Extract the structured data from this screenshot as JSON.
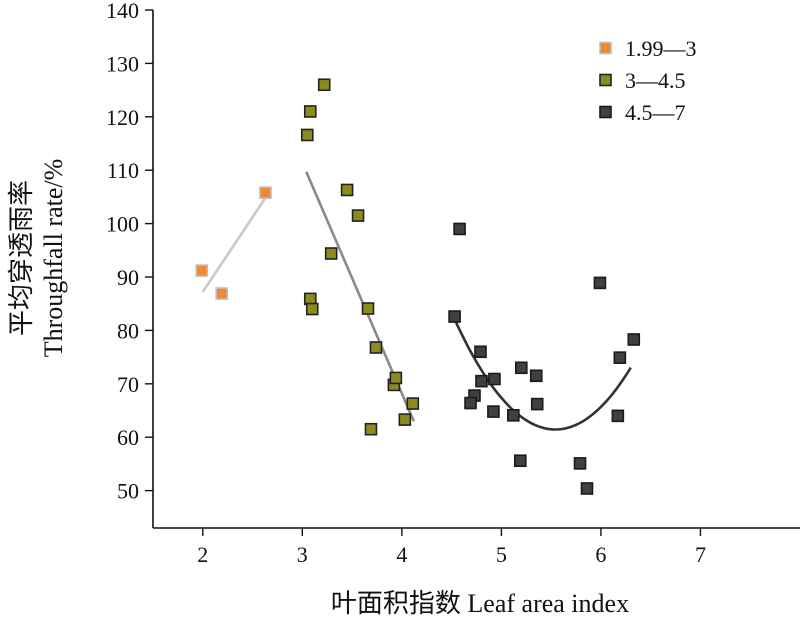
{
  "chart_data": {
    "type": "scatter",
    "xlabel": "叶面积指数 Leaf area index",
    "ylabel_cn": "平均穿透雨率",
    "ylabel_en": "Throughfall rate/%",
    "xlim": [
      1.5,
      8
    ],
    "ylim": [
      43,
      140
    ],
    "xticks": [
      2,
      3,
      4,
      5,
      6,
      7
    ],
    "yticks": [
      50,
      60,
      70,
      80,
      90,
      100,
      110,
      120,
      130,
      140
    ],
    "grid": false,
    "legend_position": "top-right",
    "series": [
      {
        "name": "1.99—3",
        "color": "#f28a2a",
        "edge": "#bdbdbd",
        "points": [
          [
            1.99,
            91.2
          ],
          [
            2.19,
            86.9
          ],
          [
            2.63,
            105.8
          ]
        ],
        "fit": {
          "kind": "line",
          "x": [
            2.0,
            2.65
          ],
          "y": [
            87.2,
            105.4
          ],
          "color": "#c8c8c8"
        }
      },
      {
        "name": "3—4.5",
        "color": "#8c8c1e",
        "edge": "#222222",
        "points": [
          [
            3.05,
            116.6
          ],
          [
            3.08,
            121.0
          ],
          [
            3.22,
            126.0
          ],
          [
            3.08,
            85.9
          ],
          [
            3.1,
            84.0
          ],
          [
            3.29,
            94.4
          ],
          [
            3.45,
            106.3
          ],
          [
            3.56,
            101.5
          ],
          [
            3.66,
            84.1
          ],
          [
            3.74,
            76.8
          ],
          [
            3.69,
            61.5
          ],
          [
            3.92,
            69.8
          ],
          [
            3.94,
            71.1
          ],
          [
            4.03,
            63.3
          ],
          [
            4.11,
            66.3
          ]
        ],
        "fit": {
          "kind": "line",
          "x": [
            3.04,
            4.12
          ],
          "y": [
            109.7,
            63.0
          ],
          "color": "#8a8a8a"
        }
      },
      {
        "name": "4.5—7",
        "color": "#404040",
        "edge": "#1a1a1a",
        "points": [
          [
            4.58,
            99.0
          ],
          [
            4.53,
            82.6
          ],
          [
            4.79,
            76.0
          ],
          [
            4.8,
            70.5
          ],
          [
            4.73,
            67.8
          ],
          [
            4.69,
            66.4
          ],
          [
            4.93,
            70.9
          ],
          [
            4.92,
            64.8
          ],
          [
            5.12,
            64.1
          ],
          [
            5.2,
            73.0
          ],
          [
            5.19,
            55.6
          ],
          [
            5.35,
            71.5
          ],
          [
            5.36,
            66.2
          ],
          [
            5.79,
            55.1
          ],
          [
            5.86,
            50.4
          ],
          [
            5.99,
            88.9
          ],
          [
            6.17,
            64.0
          ],
          [
            6.19,
            74.9
          ],
          [
            6.33,
            78.3
          ]
        ],
        "fit": {
          "kind": "quadratic",
          "x": [
            4.5,
            5.0,
            5.5,
            6.0,
            6.3
          ],
          "y": [
            83.5,
            67.0,
            61.6,
            66.0,
            72.8
          ],
          "color": "#333333"
        }
      }
    ]
  }
}
